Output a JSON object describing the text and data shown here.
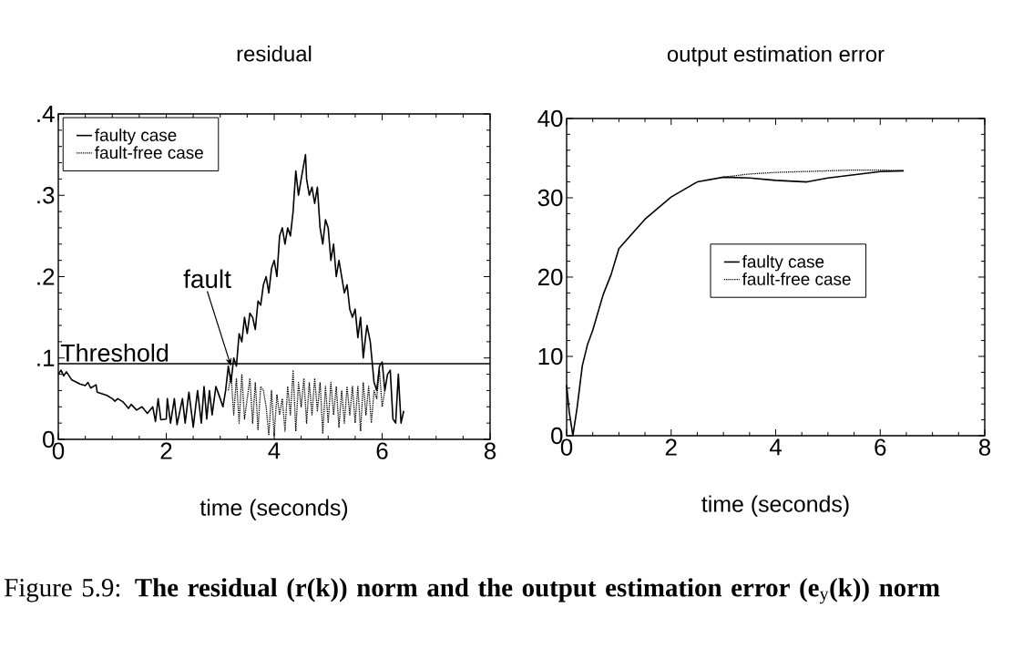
{
  "chart_data": [
    {
      "type": "line",
      "title": "residual",
      "xlabel": "time (seconds)",
      "xlim": [
        0,
        8
      ],
      "ylim": [
        0,
        0.4
      ],
      "xticks": [
        0,
        2,
        4,
        6,
        8
      ],
      "yticks": [
        0,
        {
          "value": 0.1,
          "label": ".1"
        },
        {
          "value": 0.2,
          "label": ".2"
        },
        {
          "value": 0.3,
          "label": ".3"
        },
        {
          "value": 0.4,
          "label": ".4"
        }
      ],
      "legend": "top left",
      "grid": false,
      "series": [
        {
          "name": "faulty case",
          "color": "#000000",
          "line_style": "solid",
          "x": [
            0,
            0.05,
            0.1,
            0.15,
            0.25,
            0.4,
            0.5,
            0.55,
            0.6,
            0.7,
            0.72,
            0.9,
            1.0,
            1.05,
            1.1,
            1.2,
            1.3,
            1.35,
            1.45,
            1.55,
            1.65,
            1.75,
            1.8,
            1.85,
            1.9,
            2.0,
            2.02,
            2.08,
            2.15,
            2.2,
            2.3,
            2.35,
            2.42,
            2.5,
            2.58,
            2.65,
            2.7,
            2.75,
            2.8,
            2.85,
            2.92,
            3.0,
            3.05,
            3.1,
            3.15,
            3.2,
            3.25,
            3.3,
            3.35,
            3.4,
            3.45,
            3.5,
            3.55,
            3.6,
            3.65,
            3.7,
            3.75,
            3.8,
            3.85,
            3.9,
            3.95,
            4.0,
            4.05,
            4.1,
            4.15,
            4.2,
            4.25,
            4.3,
            4.35,
            4.4,
            4.45,
            4.5,
            4.58,
            4.6,
            4.65,
            4.7,
            4.75,
            4.8,
            4.85,
            4.9,
            4.95,
            5.0,
            5.05,
            5.1,
            5.15,
            5.2,
            5.25,
            5.3,
            5.35,
            5.4,
            5.45,
            5.5,
            5.55,
            5.6,
            5.65,
            5.7,
            5.72,
            5.78,
            5.85,
            5.9,
            5.95,
            6.0,
            6.05,
            6.1,
            6.15,
            6.2,
            6.25,
            6.3,
            6.35,
            6.4
          ],
          "values": [
            0.08,
            0.085,
            0.078,
            0.083,
            0.073,
            0.068,
            0.066,
            0.07,
            0.063,
            0.067,
            0.058,
            0.054,
            0.05,
            0.047,
            0.05,
            0.046,
            0.038,
            0.043,
            0.036,
            0.04,
            0.032,
            0.04,
            0.022,
            0.05,
            0.024,
            0.025,
            0.05,
            0.02,
            0.05,
            0.018,
            0.05,
            0.02,
            0.058,
            0.015,
            0.06,
            0.02,
            0.065,
            0.025,
            0.06,
            0.03,
            0.065,
            0.05,
            0.04,
            0.06,
            0.09,
            0.07,
            0.1,
            0.09,
            0.13,
            0.12,
            0.15,
            0.13,
            0.155,
            0.15,
            0.135,
            0.17,
            0.165,
            0.19,
            0.2,
            0.18,
            0.21,
            0.22,
            0.2,
            0.25,
            0.26,
            0.24,
            0.26,
            0.25,
            0.28,
            0.33,
            0.3,
            0.32,
            0.35,
            0.32,
            0.3,
            0.31,
            0.29,
            0.31,
            0.26,
            0.24,
            0.27,
            0.26,
            0.22,
            0.24,
            0.2,
            0.22,
            0.2,
            0.18,
            0.19,
            0.16,
            0.15,
            0.16,
            0.125,
            0.15,
            0.1,
            0.13,
            0.14,
            0.12,
            0.07,
            0.06,
            0.09,
            0.095,
            0.06,
            0.08,
            0.085,
            0.025,
            0.02,
            0.08,
            0.02,
            0.035
          ]
        },
        {
          "name": "fault-free case",
          "color": "#000000",
          "line_style": "dotted",
          "x": [
            3.15,
            3.2,
            3.25,
            3.3,
            3.35,
            3.4,
            3.45,
            3.55,
            3.6,
            3.65,
            3.7,
            3.75,
            3.8,
            3.85,
            3.9,
            3.95,
            4.0,
            4.05,
            4.1,
            4.15,
            4.2,
            4.25,
            4.3,
            4.35,
            4.4,
            4.45,
            4.5,
            4.55,
            4.6,
            4.65,
            4.7,
            4.75,
            4.8,
            4.85,
            4.9,
            4.95,
            5.0,
            5.05,
            5.1,
            5.15,
            5.2,
            5.25,
            5.3,
            5.35,
            5.4,
            5.45,
            5.5,
            5.55,
            5.6,
            5.65,
            5.7,
            5.75,
            5.8,
            5.85,
            5.9,
            5.95,
            6.0,
            6.05
          ],
          "values": [
            0.06,
            0.08,
            0.03,
            0.075,
            0.02,
            0.08,
            0.025,
            0.075,
            0.02,
            0.07,
            0.012,
            0.065,
            0.06,
            0.04,
            0.005,
            0.06,
            0.005,
            0.055,
            0.03,
            0.05,
            0.01,
            0.065,
            0.03,
            0.085,
            0.01,
            0.07,
            0.04,
            0.075,
            0.02,
            0.07,
            0.03,
            0.075,
            0.035,
            0.07,
            0.008,
            0.065,
            0.02,
            0.07,
            0.03,
            0.065,
            0.015,
            0.06,
            0.02,
            0.065,
            0.03,
            0.065,
            0.02,
            0.065,
            0.01,
            0.07,
            0.03,
            0.065,
            0.02,
            0.06,
            0.05,
            0.085,
            0.04,
            0.06
          ]
        }
      ],
      "ref_lines": [
        {
          "axis": "y",
          "value": 0.093,
          "label": "Threshold",
          "color": "#000000"
        }
      ],
      "annotations": [
        {
          "text": "fault",
          "x": 3.2,
          "y": 0.09
        },
        "Figure 5.9: **The residual (r(k)) norm and the output estimation error (e**$_{y}$**(k)) norm**"
      ]
    },
    {
      "type": "line",
      "title": "output estimation error",
      "xlabel": "time (seconds)",
      "xlim": [
        0,
        8
      ],
      "ylim": [
        0,
        40
      ],
      "xticks": [
        0,
        2,
        4,
        6,
        8
      ],
      "yticks": [
        0,
        10,
        20,
        30,
        40
      ],
      "legend": "center",
      "grid": false,
      "series": [
        {
          "name": "faulty case",
          "color": "#000000",
          "line_style": "solid",
          "x": [
            0,
            0.05,
            0.12,
            0.2,
            0.3,
            0.4,
            0.5,
            0.7,
            0.85,
            1.0,
            1.5,
            2.0,
            2.5,
            3.0,
            3.5,
            4.0,
            4.6,
            5.0,
            5.5,
            6.0,
            6.45
          ],
          "values": [
            6.4,
            3,
            0,
            3.5,
            8.8,
            11.5,
            13.3,
            17.8,
            20.3,
            23.6,
            27.3,
            30.1,
            32,
            32.6,
            32.5,
            32.2,
            32,
            32.5,
            32.9,
            33.3,
            33.4
          ]
        },
        {
          "name": "fault-free case",
          "color": "#000000",
          "line_style": "dotted",
          "x": [
            3.0,
            3.5,
            4.0,
            4.5,
            5.0,
            5.5,
            6.0,
            6.45
          ],
          "values": [
            32.6,
            33,
            33.2,
            33.3,
            33.4,
            33.5,
            33.5,
            33.4
          ]
        }
      ]
    }
  ]
}
